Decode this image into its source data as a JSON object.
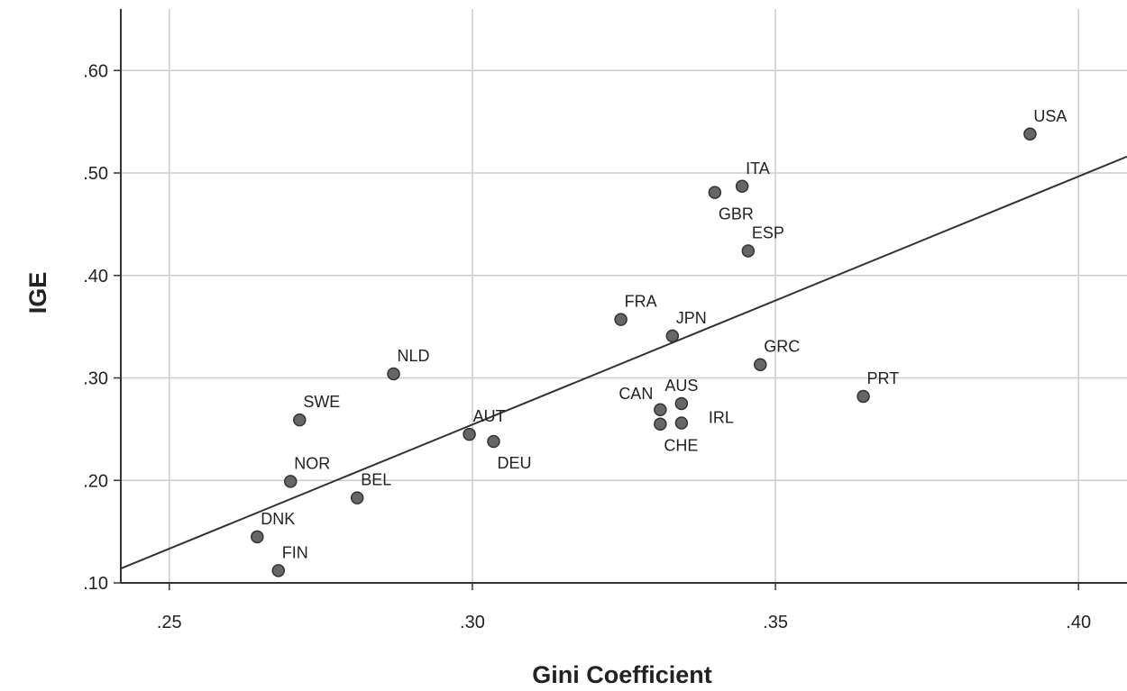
{
  "chart_data": {
    "type": "scatter",
    "xlabel": "Gini Coefficient",
    "ylabel": "IGE",
    "xlim": [
      0.242,
      0.408
    ],
    "ylim": [
      0.1,
      0.66
    ],
    "x_ticks": [
      0.25,
      0.3,
      0.35,
      0.4
    ],
    "x_tick_labels": [
      ".25",
      ".30",
      ".35",
      ".40"
    ],
    "y_ticks": [
      0.1,
      0.2,
      0.3,
      0.4,
      0.5,
      0.6
    ],
    "y_tick_labels": [
      ".10",
      ".20",
      ".30",
      ".40",
      ".50",
      ".60"
    ],
    "grid": true,
    "colors": {
      "point": "#666666",
      "point_edge": "#333333",
      "line": "#333333",
      "grid": "#cccccc",
      "axis": "#333333"
    },
    "points": [
      {
        "label": "USA",
        "x": 0.392,
        "y": 0.538,
        "label_pos": "above-right"
      },
      {
        "label": "ITA",
        "x": 0.3445,
        "y": 0.487,
        "label_pos": "above-right"
      },
      {
        "label": "GBR",
        "x": 0.34,
        "y": 0.481,
        "label_pos": "below-right"
      },
      {
        "label": "ESP",
        "x": 0.3455,
        "y": 0.424,
        "label_pos": "above-right"
      },
      {
        "label": "FRA",
        "x": 0.3245,
        "y": 0.357,
        "label_pos": "above-right"
      },
      {
        "label": "JPN",
        "x": 0.333,
        "y": 0.341,
        "label_pos": "above-right"
      },
      {
        "label": "GRC",
        "x": 0.3475,
        "y": 0.313,
        "label_pos": "above-right"
      },
      {
        "label": "NLD",
        "x": 0.287,
        "y": 0.304,
        "label_pos": "above-right"
      },
      {
        "label": "PRT",
        "x": 0.3645,
        "y": 0.282,
        "label_pos": "above-right"
      },
      {
        "label": "CAN",
        "x": 0.331,
        "y": 0.269,
        "label_pos": "above-left"
      },
      {
        "label": "AUS",
        "x": 0.3345,
        "y": 0.275,
        "label_pos": "above"
      },
      {
        "label": "IRL",
        "x": 0.3345,
        "y": 0.256,
        "label_pos": "right-up"
      },
      {
        "label": "CHE",
        "x": 0.331,
        "y": 0.255,
        "label_pos": "below-right"
      },
      {
        "label": "SWE",
        "x": 0.2715,
        "y": 0.259,
        "label_pos": "above-right"
      },
      {
        "label": "AUT",
        "x": 0.2995,
        "y": 0.245,
        "label_pos": "above-right"
      },
      {
        "label": "DEU",
        "x": 0.3035,
        "y": 0.238,
        "label_pos": "below-right"
      },
      {
        "label": "NOR",
        "x": 0.27,
        "y": 0.199,
        "label_pos": "above-right"
      },
      {
        "label": "BEL",
        "x": 0.281,
        "y": 0.183,
        "label_pos": "above-right"
      },
      {
        "label": "DNK",
        "x": 0.2645,
        "y": 0.145,
        "label_pos": "above-right"
      },
      {
        "label": "FIN",
        "x": 0.268,
        "y": 0.112,
        "label_pos": "above-right"
      }
    ],
    "fit_line": {
      "x": [
        0.242,
        0.408
      ],
      "y": [
        0.114,
        0.516
      ]
    }
  }
}
